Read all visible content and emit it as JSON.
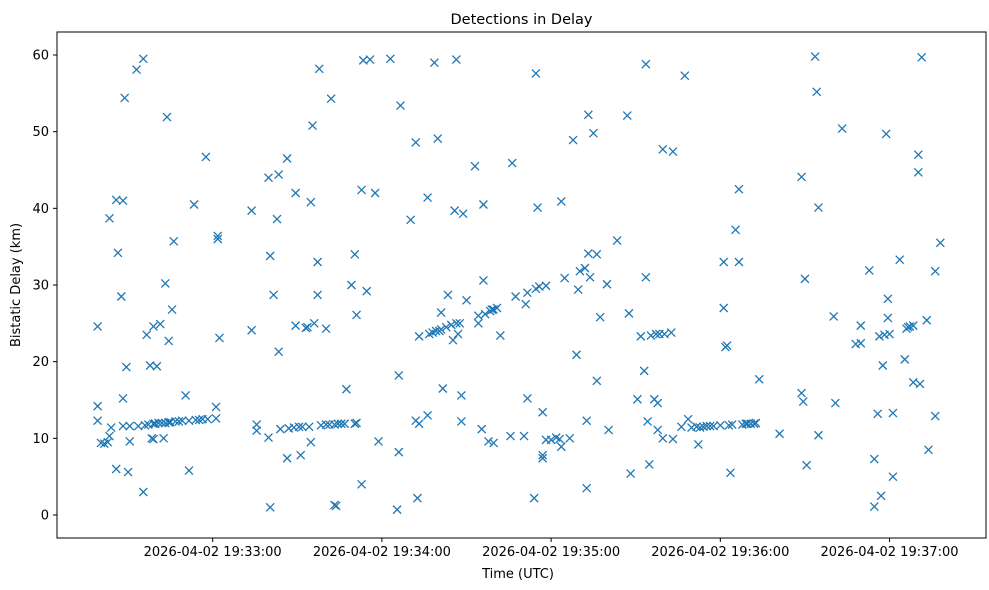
{
  "chart_data": {
    "type": "scatter",
    "title": "Detections in Delay",
    "xlabel": "Time (UTC)",
    "ylabel": "Bistatic Delay (km)",
    "xlim": [
      -0.92,
      4.57
    ],
    "ylim": [
      -3,
      63
    ],
    "x_ticks": [
      {
        "value": 0,
        "label": "2026-04-02 19:33:00"
      },
      {
        "value": 1,
        "label": "2026-04-02 19:34:00"
      },
      {
        "value": 2,
        "label": "2026-04-02 19:35:00"
      },
      {
        "value": 3,
        "label": "2026-04-02 19:36:00"
      },
      {
        "value": 4,
        "label": "2026-04-02 19:37:00"
      }
    ],
    "y_ticks": [
      0,
      10,
      20,
      30,
      40,
      50,
      60
    ],
    "marker": "x",
    "color": "#1f77b4",
    "series": [
      {
        "name": "detections",
        "points": [
          [
            -0.68,
            14.2
          ],
          [
            -0.68,
            12.3
          ],
          [
            -0.68,
            24.6
          ],
          [
            -0.66,
            9.4
          ],
          [
            -0.64,
            9.3
          ],
          [
            -0.62,
            9.5
          ],
          [
            -0.61,
            10.3
          ],
          [
            -0.61,
            38.7
          ],
          [
            -0.6,
            11.4
          ],
          [
            -0.57,
            41.1
          ],
          [
            -0.57,
            6.0
          ],
          [
            -0.56,
            34.2
          ],
          [
            -0.54,
            28.5
          ],
          [
            -0.53,
            41.0
          ],
          [
            -0.53,
            11.6
          ],
          [
            -0.53,
            15.2
          ],
          [
            -0.52,
            54.4
          ],
          [
            -0.51,
            19.3
          ],
          [
            -0.5,
            5.6
          ],
          [
            -0.49,
            9.6
          ],
          [
            -0.49,
            11.6
          ],
          [
            -0.45,
            58.1
          ],
          [
            -0.44,
            11.6
          ],
          [
            -0.41,
            59.5
          ],
          [
            -0.4,
            11.7
          ],
          [
            -0.41,
            3.0
          ],
          [
            -0.39,
            23.5
          ],
          [
            -0.38,
            11.8
          ],
          [
            -0.37,
            19.5
          ],
          [
            -0.36,
            10.0
          ],
          [
            -0.35,
            11.9
          ],
          [
            -0.35,
            9.9
          ],
          [
            -0.35,
            24.6
          ],
          [
            -0.34,
            11.9
          ],
          [
            -0.33,
            19.4
          ],
          [
            -0.32,
            12.0
          ],
          [
            -0.31,
            24.9
          ],
          [
            -0.3,
            12.0
          ],
          [
            -0.29,
            10.0
          ],
          [
            -0.28,
            12.0
          ],
          [
            -0.28,
            30.2
          ],
          [
            -0.27,
            51.9
          ],
          [
            -0.26,
            12.1
          ],
          [
            -0.26,
            22.7
          ],
          [
            -0.25,
            12.1
          ],
          [
            -0.24,
            26.8
          ],
          [
            -0.23,
            35.7
          ],
          [
            -0.22,
            12.2
          ],
          [
            -0.2,
            12.2
          ],
          [
            -0.18,
            12.3
          ],
          [
            -0.16,
            15.6
          ],
          [
            -0.14,
            5.8
          ],
          [
            -0.14,
            12.3
          ],
          [
            -0.11,
            40.5
          ],
          [
            -0.1,
            12.4
          ],
          [
            -0.08,
            12.4
          ],
          [
            -0.06,
            12.5
          ],
          [
            -0.04,
            46.7
          ],
          [
            -0.03,
            12.5
          ],
          [
            0.02,
            12.6
          ],
          [
            0.02,
            14.1
          ],
          [
            0.03,
            36.0
          ],
          [
            0.03,
            36.4
          ],
          [
            0.04,
            23.1
          ],
          [
            0.23,
            39.7
          ],
          [
            0.23,
            24.1
          ],
          [
            0.26,
            11.8
          ],
          [
            0.26,
            11.0
          ],
          [
            0.33,
            10.1
          ],
          [
            0.33,
            44.0
          ],
          [
            0.34,
            33.8
          ],
          [
            0.34,
            1.0
          ],
          [
            0.36,
            28.7
          ],
          [
            0.38,
            38.6
          ],
          [
            0.39,
            21.3
          ],
          [
            0.39,
            44.4
          ],
          [
            0.4,
            11.2
          ],
          [
            0.44,
            7.4
          ],
          [
            0.44,
            46.5
          ],
          [
            0.45,
            11.3
          ],
          [
            0.48,
            11.4
          ],
          [
            0.49,
            24.7
          ],
          [
            0.49,
            42.0
          ],
          [
            0.51,
            11.5
          ],
          [
            0.52,
            7.8
          ],
          [
            0.53,
            11.5
          ],
          [
            0.55,
            24.4
          ],
          [
            0.56,
            24.5
          ],
          [
            0.57,
            11.5
          ],
          [
            0.58,
            9.5
          ],
          [
            0.58,
            40.8
          ],
          [
            0.59,
            50.8
          ],
          [
            0.6,
            25.0
          ],
          [
            0.62,
            28.7
          ],
          [
            0.62,
            33.0
          ],
          [
            0.63,
            58.2
          ],
          [
            0.64,
            11.7
          ],
          [
            0.67,
            11.8
          ],
          [
            0.67,
            24.3
          ],
          [
            0.69,
            11.8
          ],
          [
            0.7,
            54.3
          ],
          [
            0.72,
            11.8
          ],
          [
            0.72,
            1.3
          ],
          [
            0.73,
            1.2
          ],
          [
            0.74,
            11.9
          ],
          [
            0.76,
            11.9
          ],
          [
            0.78,
            11.9
          ],
          [
            0.79,
            16.4
          ],
          [
            0.82,
            30.0
          ],
          [
            0.84,
            11.9
          ],
          [
            0.84,
            34.0
          ],
          [
            0.85,
            12.0
          ],
          [
            0.85,
            26.1
          ],
          [
            0.88,
            42.4
          ],
          [
            0.88,
            4.0
          ],
          [
            0.89,
            59.3
          ],
          [
            0.91,
            29.2
          ],
          [
            0.93,
            59.4
          ],
          [
            0.96,
            42.0
          ],
          [
            0.98,
            9.6
          ],
          [
            1.05,
            59.5
          ],
          [
            1.09,
            0.7
          ],
          [
            1.1,
            8.2
          ],
          [
            1.1,
            18.2
          ],
          [
            1.11,
            53.4
          ],
          [
            1.17,
            38.5
          ],
          [
            1.2,
            48.6
          ],
          [
            1.2,
            12.3
          ],
          [
            1.21,
            2.2
          ],
          [
            1.22,
            11.9
          ],
          [
            1.22,
            23.3
          ],
          [
            1.27,
            13.0
          ],
          [
            1.27,
            41.4
          ],
          [
            1.28,
            23.6
          ],
          [
            1.3,
            23.8
          ],
          [
            1.31,
            59.0
          ],
          [
            1.32,
            24.0
          ],
          [
            1.33,
            49.1
          ],
          [
            1.34,
            24.0
          ],
          [
            1.35,
            26.4
          ],
          [
            1.35,
            24.2
          ],
          [
            1.36,
            16.5
          ],
          [
            1.38,
            24.5
          ],
          [
            1.39,
            28.7
          ],
          [
            1.41,
            24.8
          ],
          [
            1.42,
            22.8
          ],
          [
            1.43,
            39.7
          ],
          [
            1.44,
            59.4
          ],
          [
            1.44,
            25.0
          ],
          [
            1.45,
            23.6
          ],
          [
            1.46,
            25.0
          ],
          [
            1.47,
            15.6
          ],
          [
            1.47,
            12.2
          ],
          [
            1.48,
            39.3
          ],
          [
            1.5,
            28.0
          ],
          [
            1.55,
            45.5
          ],
          [
            1.57,
            25.0
          ],
          [
            1.57,
            26.0
          ],
          [
            1.59,
            11.2
          ],
          [
            1.6,
            30.6
          ],
          [
            1.6,
            40.5
          ],
          [
            1.61,
            26.2
          ],
          [
            1.63,
            9.6
          ],
          [
            1.64,
            26.6
          ],
          [
            1.65,
            26.8
          ],
          [
            1.66,
            9.4
          ],
          [
            1.66,
            26.8
          ],
          [
            1.68,
            27.0
          ],
          [
            1.7,
            23.4
          ],
          [
            1.76,
            10.3
          ],
          [
            1.77,
            45.9
          ],
          [
            1.79,
            28.5
          ],
          [
            1.84,
            10.3
          ],
          [
            1.85,
            27.5
          ],
          [
            1.86,
            15.2
          ],
          [
            1.86,
            29.0
          ],
          [
            1.9,
            2.2
          ],
          [
            1.91,
            57.6
          ],
          [
            1.91,
            29.5
          ],
          [
            1.92,
            40.1
          ],
          [
            1.93,
            29.8
          ],
          [
            1.95,
            7.4
          ],
          [
            1.95,
            7.8
          ],
          [
            1.95,
            13.4
          ],
          [
            1.97,
            9.8
          ],
          [
            1.97,
            29.9
          ],
          [
            2.0,
            9.8
          ],
          [
            2.03,
            10.1
          ],
          [
            2.05,
            9.9
          ],
          [
            2.06,
            8.9
          ],
          [
            2.06,
            40.9
          ],
          [
            2.08,
            30.9
          ],
          [
            2.11,
            10.0
          ],
          [
            2.13,
            48.9
          ],
          [
            2.15,
            20.9
          ],
          [
            2.16,
            29.4
          ],
          [
            2.17,
            31.8
          ],
          [
            2.2,
            32.2
          ],
          [
            2.21,
            12.3
          ],
          [
            2.21,
            3.5
          ],
          [
            2.22,
            52.2
          ],
          [
            2.22,
            34.1
          ],
          [
            2.23,
            31.0
          ],
          [
            2.25,
            49.8
          ],
          [
            2.27,
            17.5
          ],
          [
            2.27,
            34.0
          ],
          [
            2.29,
            25.8
          ],
          [
            2.33,
            30.1
          ],
          [
            2.34,
            11.1
          ],
          [
            2.39,
            35.8
          ],
          [
            2.45,
            52.1
          ],
          [
            2.46,
            26.3
          ],
          [
            2.47,
            5.4
          ],
          [
            2.51,
            15.1
          ],
          [
            2.53,
            23.3
          ],
          [
            2.55,
            18.8
          ],
          [
            2.56,
            31.0
          ],
          [
            2.56,
            58.8
          ],
          [
            2.57,
            12.2
          ],
          [
            2.58,
            6.6
          ],
          [
            2.59,
            23.4
          ],
          [
            2.61,
            15.1
          ],
          [
            2.62,
            23.6
          ],
          [
            2.63,
            14.6
          ],
          [
            2.63,
            11.1
          ],
          [
            2.64,
            23.6
          ],
          [
            2.66,
            47.7
          ],
          [
            2.66,
            10.0
          ],
          [
            2.67,
            23.6
          ],
          [
            2.71,
            23.8
          ],
          [
            2.72,
            47.4
          ],
          [
            2.72,
            9.9
          ],
          [
            2.77,
            11.5
          ],
          [
            2.79,
            57.3
          ],
          [
            2.81,
            12.5
          ],
          [
            2.83,
            11.4
          ],
          [
            2.86,
            11.5
          ],
          [
            2.87,
            9.2
          ],
          [
            2.88,
            11.4
          ],
          [
            2.9,
            11.5
          ],
          [
            2.92,
            11.6
          ],
          [
            2.94,
            11.6
          ],
          [
            2.96,
            11.6
          ],
          [
            3.0,
            11.7
          ],
          [
            3.02,
            33.0
          ],
          [
            3.02,
            27.0
          ],
          [
            3.03,
            21.9
          ],
          [
            3.04,
            22.1
          ],
          [
            3.05,
            11.7
          ],
          [
            3.06,
            5.5
          ],
          [
            3.07,
            11.8
          ],
          [
            3.09,
            37.2
          ],
          [
            3.11,
            42.5
          ],
          [
            3.11,
            33.0
          ],
          [
            3.13,
            11.8
          ],
          [
            3.15,
            11.9
          ],
          [
            3.16,
            11.9
          ],
          [
            3.18,
            11.9
          ],
          [
            3.2,
            11.9
          ],
          [
            3.21,
            12.0
          ],
          [
            3.23,
            17.7
          ],
          [
            3.35,
            10.6
          ],
          [
            3.48,
            15.9
          ],
          [
            3.48,
            44.1
          ],
          [
            3.49,
            14.8
          ],
          [
            3.5,
            30.8
          ],
          [
            3.51,
            6.5
          ],
          [
            3.56,
            59.8
          ],
          [
            3.57,
            55.2
          ],
          [
            3.58,
            40.1
          ],
          [
            3.58,
            10.4
          ],
          [
            3.67,
            25.9
          ],
          [
            3.68,
            14.6
          ],
          [
            3.72,
            50.4
          ],
          [
            3.8,
            22.3
          ],
          [
            3.83,
            24.7
          ],
          [
            3.83,
            22.4
          ],
          [
            3.88,
            31.9
          ],
          [
            3.91,
            1.1
          ],
          [
            3.91,
            7.3
          ],
          [
            3.93,
            13.2
          ],
          [
            3.94,
            23.3
          ],
          [
            3.95,
            2.5
          ],
          [
            3.96,
            19.5
          ],
          [
            3.97,
            23.5
          ],
          [
            3.98,
            49.7
          ],
          [
            3.99,
            25.7
          ],
          [
            3.99,
            28.2
          ],
          [
            4.0,
            23.6
          ],
          [
            4.02,
            13.3
          ],
          [
            4.02,
            5.0
          ],
          [
            4.06,
            33.3
          ],
          [
            4.09,
            20.3
          ],
          [
            4.1,
            24.3
          ],
          [
            4.11,
            24.5
          ],
          [
            4.12,
            24.6
          ],
          [
            4.14,
            24.7
          ],
          [
            4.14,
            17.3
          ],
          [
            4.17,
            47.0
          ],
          [
            4.17,
            44.7
          ],
          [
            4.18,
            17.1
          ],
          [
            4.19,
            59.7
          ],
          [
            4.22,
            25.4
          ],
          [
            4.23,
            8.5
          ],
          [
            4.27,
            31.8
          ],
          [
            4.27,
            12.9
          ],
          [
            4.3,
            35.5
          ]
        ]
      }
    ]
  }
}
